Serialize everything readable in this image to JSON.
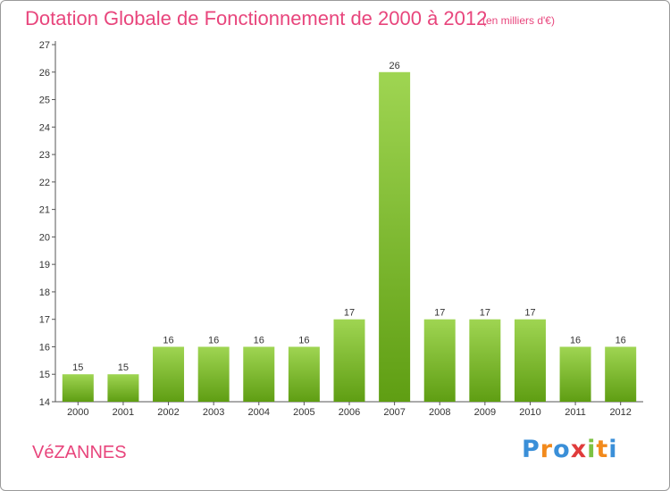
{
  "chart_data": {
    "type": "bar",
    "title": "Dotation Globale de Fonctionnement de 2000 à 2012",
    "subtitle": "(en milliers d'€)",
    "categories": [
      "2000",
      "2001",
      "2002",
      "2003",
      "2004",
      "2005",
      "2006",
      "2007",
      "2008",
      "2009",
      "2010",
      "2011",
      "2012"
    ],
    "values": [
      15,
      15,
      16,
      16,
      16,
      16,
      17,
      26,
      17,
      17,
      17,
      16,
      16
    ],
    "ylim": [
      14,
      27
    ],
    "yticks": [
      14,
      15,
      16,
      17,
      18,
      19,
      20,
      21,
      22,
      23,
      24,
      25,
      26,
      27
    ],
    "xlabel": "",
    "ylabel": "",
    "grid": false,
    "colors": {
      "bar_light": "#9fd552",
      "bar_dark": "#5f9e13",
      "title": "#e8457c"
    }
  },
  "commune": "VéZANNES",
  "logo": {
    "letters": [
      "P",
      "r",
      "o",
      "x",
      "i",
      "t",
      "i"
    ],
    "colors": [
      "#3a8fd8",
      "#f28a1c",
      "#3a8fd8",
      "#e03b3b",
      "#7cc242",
      "#f28a1c",
      "#3a8fd8"
    ]
  }
}
